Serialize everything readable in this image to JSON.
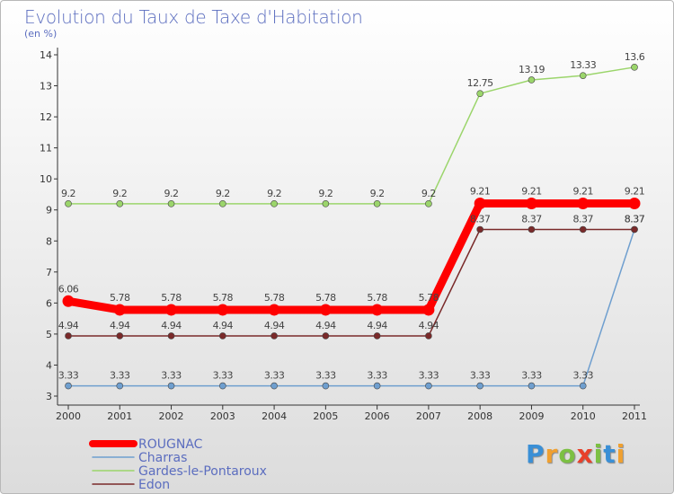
{
  "header": {
    "title": "Evolution du Taux de Taxe d'Habitation",
    "unit": "(en %)"
  },
  "logo": {
    "text": "Proxiti",
    "letters": [
      "P",
      "r",
      "o",
      "x",
      "i",
      "t",
      "i"
    ],
    "colors": [
      "#3a8fd6",
      "#f0a030",
      "#7cc043",
      "#e8402a",
      "#7cc043",
      "#3a8fd6",
      "#f0a030"
    ]
  },
  "chart_data": {
    "type": "line",
    "title": "Evolution du Taux de Taxe d'Habitation",
    "ylabel": "(en %)",
    "xlabel": "",
    "x": [
      "2000",
      "2001",
      "2002",
      "2003",
      "2004",
      "2005",
      "2006",
      "2007",
      "2008",
      "2009",
      "2010",
      "2011"
    ],
    "ylim": [
      3,
      14
    ],
    "yticks": [
      3,
      4,
      5,
      6,
      7,
      8,
      9,
      10,
      11,
      12,
      13,
      14
    ],
    "grid": false,
    "legend_position": "bottom-left",
    "series": [
      {
        "name": "ROUGNAC",
        "color": "#ff0000",
        "emphasis": true,
        "values": [
          6.06,
          5.78,
          5.78,
          5.78,
          5.78,
          5.78,
          5.78,
          5.78,
          9.21,
          9.21,
          9.21,
          9.21
        ],
        "labels": [
          "6.06",
          "5.78",
          "5.78",
          "5.78",
          "5.78",
          "5.78",
          "5.78",
          "5.78",
          "9.21",
          "9.21",
          "9.21",
          "9.21"
        ]
      },
      {
        "name": "Charras",
        "color": "#6f9fcf",
        "emphasis": false,
        "values": [
          3.33,
          3.33,
          3.33,
          3.33,
          3.33,
          3.33,
          3.33,
          3.33,
          3.33,
          3.33,
          3.33,
          8.37
        ],
        "labels": [
          "3.33",
          "3.33",
          "3.33",
          "3.33",
          "3.33",
          "3.33",
          "3.33",
          "3.33",
          "3.33",
          "3.33",
          "3.33",
          "8.37"
        ]
      },
      {
        "name": "Gardes-le-Pontaroux",
        "color": "#9bd56b",
        "emphasis": false,
        "values": [
          9.2,
          9.2,
          9.2,
          9.2,
          9.2,
          9.2,
          9.2,
          9.2,
          12.75,
          13.19,
          13.33,
          13.6
        ],
        "labels": [
          "9.2",
          "9.2",
          "9.2",
          "9.2",
          "9.2",
          "9.2",
          "9.2",
          "9.2",
          "12.75",
          "13.19",
          "13.33",
          "13.6"
        ]
      },
      {
        "name": "Edon",
        "color": "#7a2a2a",
        "emphasis": false,
        "values": [
          4.94,
          4.94,
          4.94,
          4.94,
          4.94,
          4.94,
          4.94,
          4.94,
          8.37,
          8.37,
          8.37,
          8.37
        ],
        "labels": [
          "4.94",
          "4.94",
          "4.94",
          "4.94",
          "4.94",
          "4.94",
          "4.94",
          "4.94",
          "8.37",
          "8.37",
          "8.37",
          "8.37"
        ]
      }
    ]
  }
}
